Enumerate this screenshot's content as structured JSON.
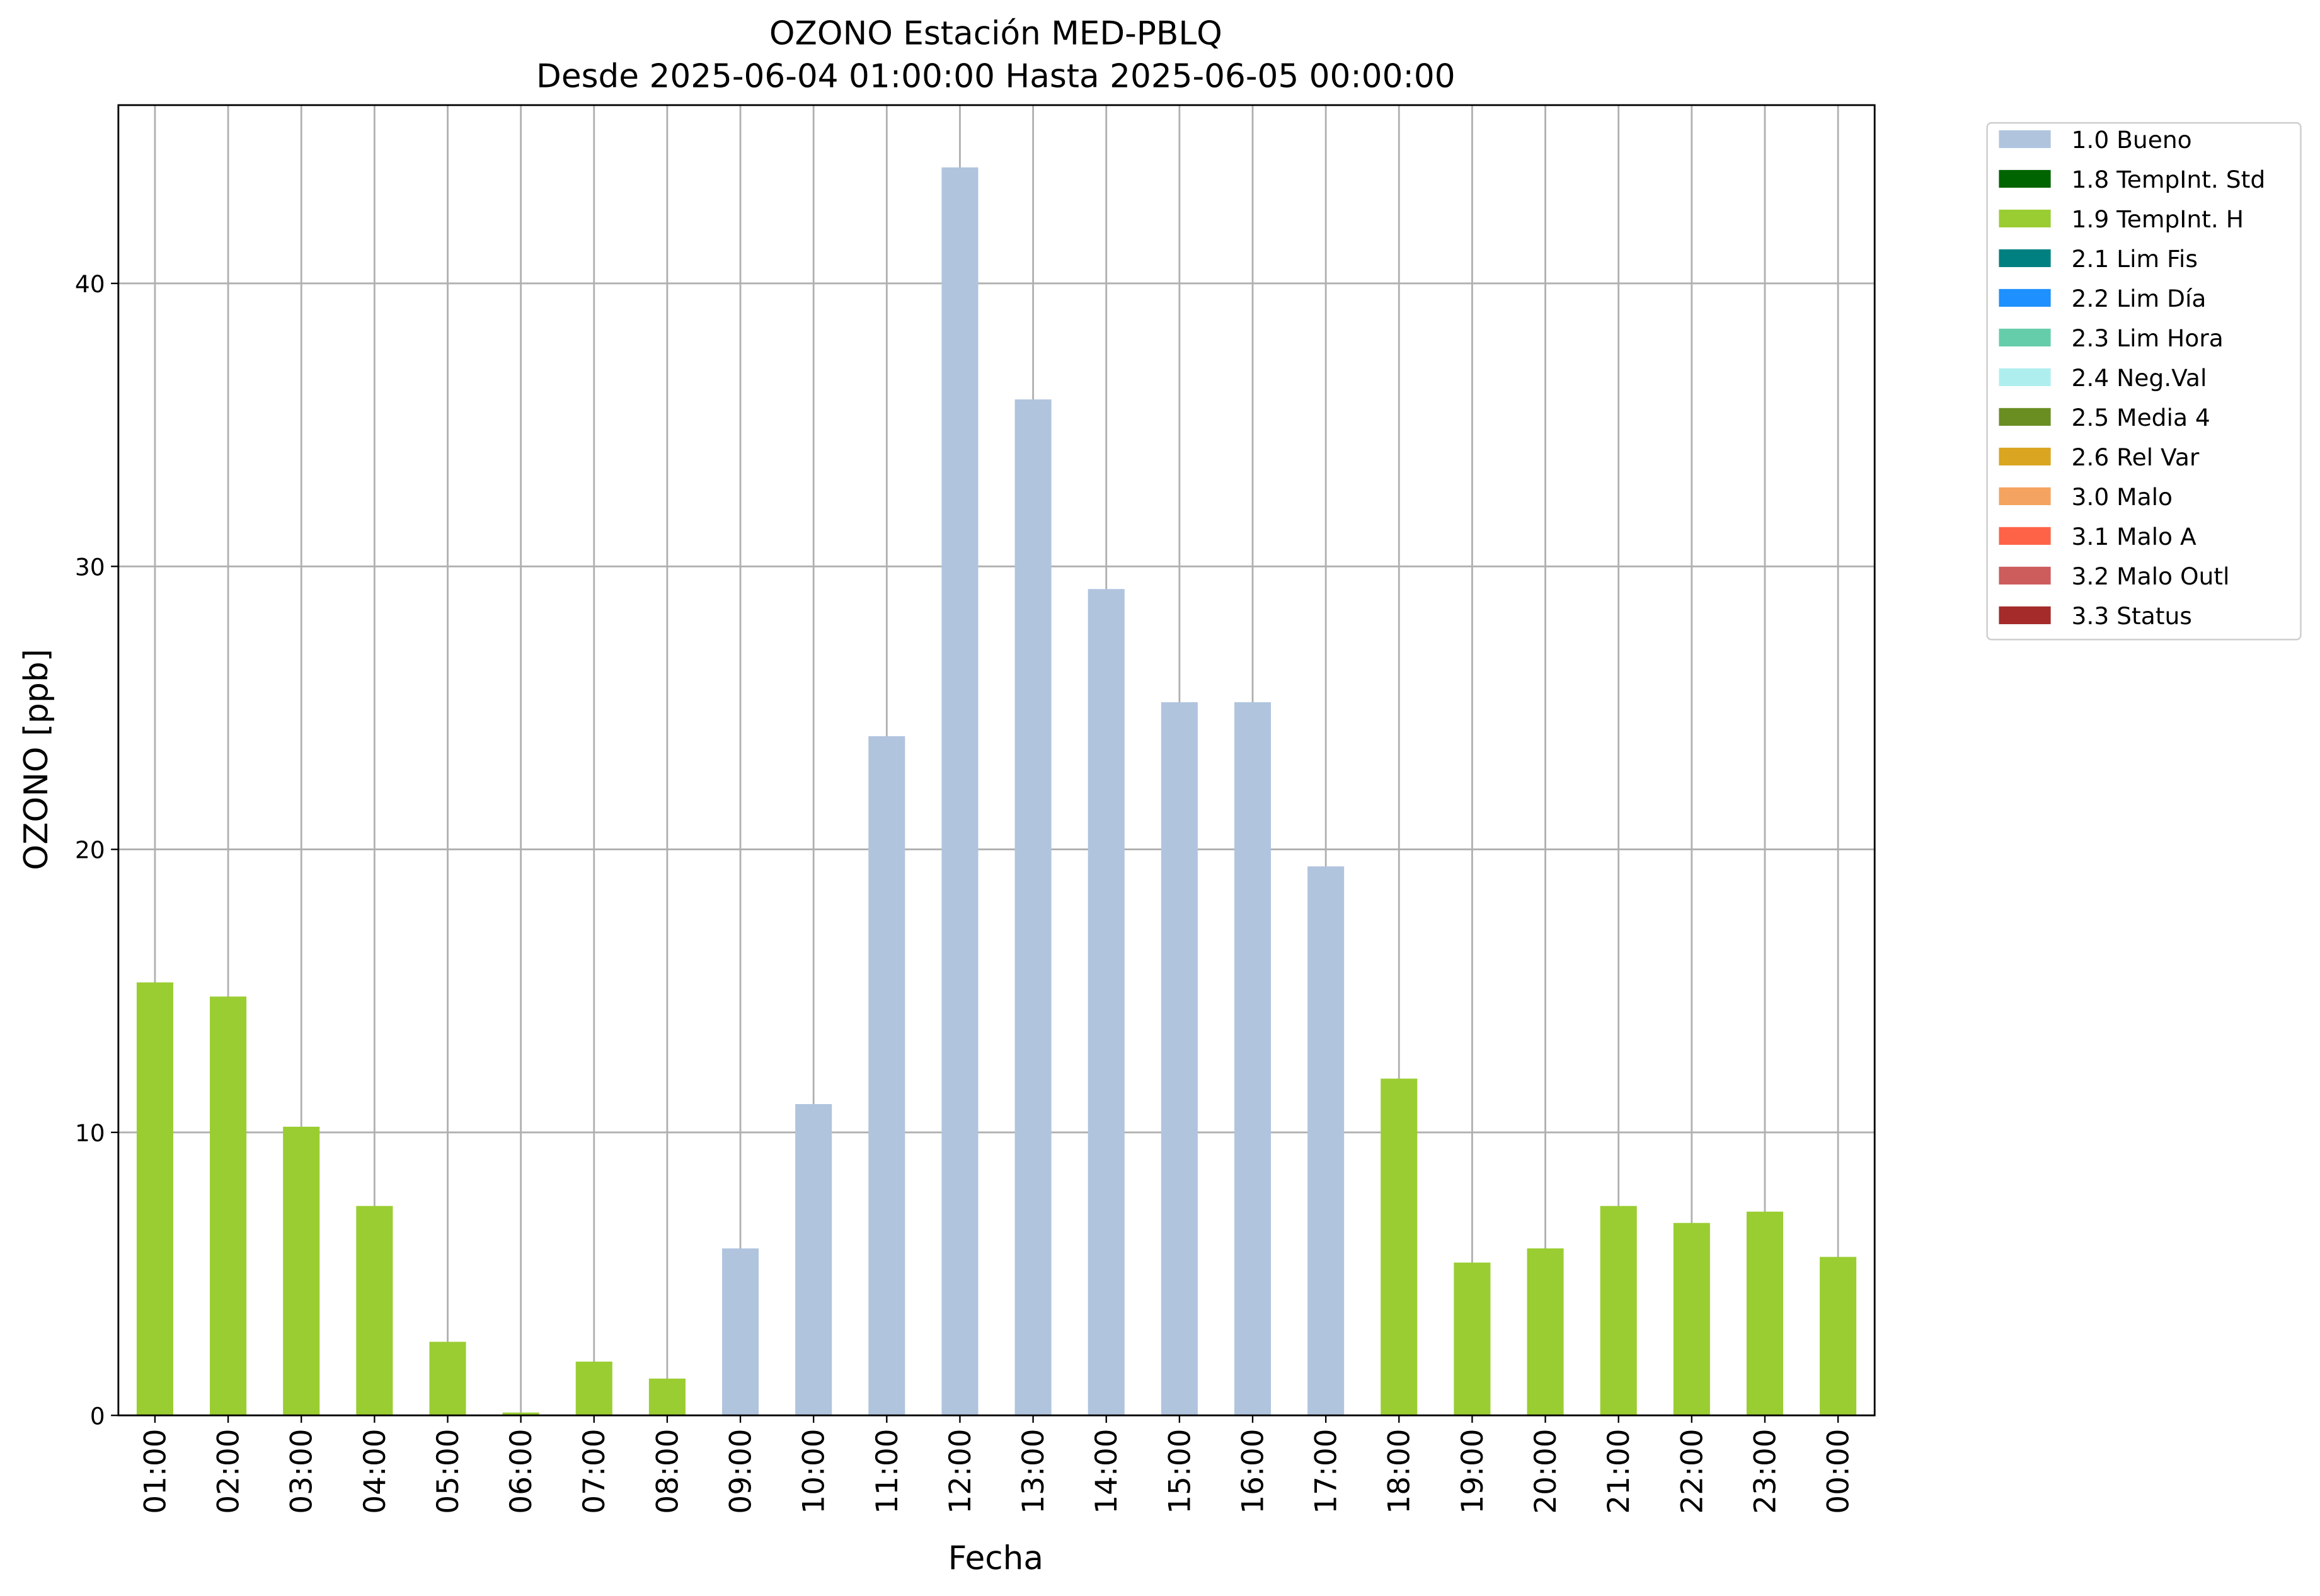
{
  "chart_data": {
    "type": "bar",
    "stacked": true,
    "title": "OZONO Estación MED-PBLQ",
    "subtitle": "Desde 2025-06-04 01:00:00 Hasta 2025-06-05 00:00:00",
    "x_label": "Fecha",
    "y_label": "OZONO [ppb]",
    "categories": [
      "01:00",
      "02:00",
      "03:00",
      "04:00",
      "05:00",
      "06:00",
      "07:00",
      "08:00",
      "09:00",
      "10:00",
      "11:00",
      "12:00",
      "13:00",
      "14:00",
      "15:00",
      "16:00",
      "17:00",
      "18:00",
      "19:00",
      "20:00",
      "21:00",
      "22:00",
      "23:00",
      "00:00"
    ],
    "series": [
      {
        "name": "1.0 Bueno",
        "color": "#b0c4de",
        "values": [
          null,
          null,
          null,
          null,
          null,
          null,
          null,
          null,
          5.9,
          11.0,
          24.0,
          44.1,
          35.9,
          29.2,
          25.2,
          25.2,
          19.4,
          null,
          null,
          null,
          null,
          null,
          null,
          null
        ]
      },
      {
        "name": "1.8 TempInt. Std",
        "color": "#006400",
        "values": [
          null,
          null,
          null,
          null,
          null,
          null,
          null,
          null,
          null,
          null,
          null,
          null,
          null,
          null,
          null,
          null,
          null,
          null,
          null,
          null,
          null,
          null,
          null,
          null
        ]
      },
      {
        "name": "1.9 TempInt. H",
        "color": "#9acd32",
        "values": [
          15.3,
          14.8,
          10.2,
          7.4,
          2.6,
          0.1,
          1.9,
          1.3,
          null,
          null,
          null,
          null,
          null,
          null,
          null,
          null,
          null,
          11.9,
          5.4,
          5.9,
          7.4,
          6.8,
          7.2,
          5.6
        ]
      },
      {
        "name": "2.1 Lim Fis",
        "color": "#008080",
        "values": [
          null,
          null,
          null,
          null,
          null,
          null,
          null,
          null,
          null,
          null,
          null,
          null,
          null,
          null,
          null,
          null,
          null,
          null,
          null,
          null,
          null,
          null,
          null,
          null
        ]
      },
      {
        "name": "2.2 Lim Día",
        "color": "#1e90ff",
        "values": [
          null,
          null,
          null,
          null,
          null,
          null,
          null,
          null,
          null,
          null,
          null,
          null,
          null,
          null,
          null,
          null,
          null,
          null,
          null,
          null,
          null,
          null,
          null,
          null
        ]
      },
      {
        "name": "2.3 Lim Hora",
        "color": "#66cdaa",
        "values": [
          null,
          null,
          null,
          null,
          null,
          null,
          null,
          null,
          null,
          null,
          null,
          null,
          null,
          null,
          null,
          null,
          null,
          null,
          null,
          null,
          null,
          null,
          null,
          null
        ]
      },
      {
        "name": "2.4 Neg.Val",
        "color": "#afeeee",
        "values": [
          null,
          null,
          null,
          null,
          null,
          null,
          null,
          null,
          null,
          null,
          null,
          null,
          null,
          null,
          null,
          null,
          null,
          null,
          null,
          null,
          null,
          null,
          null,
          null
        ]
      },
      {
        "name": "2.5 Media 4",
        "color": "#6b8e23",
        "values": [
          null,
          null,
          null,
          null,
          null,
          null,
          null,
          null,
          null,
          null,
          null,
          null,
          null,
          null,
          null,
          null,
          null,
          null,
          null,
          null,
          null,
          null,
          null,
          null
        ]
      },
      {
        "name": "2.6 Rel Var",
        "color": "#daa520",
        "values": [
          null,
          null,
          null,
          null,
          null,
          null,
          null,
          null,
          null,
          null,
          null,
          null,
          null,
          null,
          null,
          null,
          null,
          null,
          null,
          null,
          null,
          null,
          null,
          null
        ]
      },
      {
        "name": "3.0 Malo",
        "color": "#f4a460",
        "values": [
          null,
          null,
          null,
          null,
          null,
          null,
          null,
          null,
          null,
          null,
          null,
          null,
          null,
          null,
          null,
          null,
          null,
          null,
          null,
          null,
          null,
          null,
          null,
          null
        ]
      },
      {
        "name": "3.1 Malo A",
        "color": "#ff6347",
        "values": [
          null,
          null,
          null,
          null,
          null,
          null,
          null,
          null,
          null,
          null,
          null,
          null,
          null,
          null,
          null,
          null,
          null,
          null,
          null,
          null,
          null,
          null,
          null,
          null
        ]
      },
      {
        "name": "3.2 Malo Outl",
        "color": "#cd5c5c",
        "values": [
          null,
          null,
          null,
          null,
          null,
          null,
          null,
          null,
          null,
          null,
          null,
          null,
          null,
          null,
          null,
          null,
          null,
          null,
          null,
          null,
          null,
          null,
          null,
          null
        ]
      },
      {
        "name": "3.3 Status",
        "color": "#a52a2a",
        "values": [
          null,
          null,
          null,
          null,
          null,
          null,
          null,
          null,
          null,
          null,
          null,
          null,
          null,
          null,
          null,
          null,
          null,
          null,
          null,
          null,
          null,
          null,
          null,
          null
        ]
      }
    ],
    "ylim": [
      0,
      46.3
    ],
    "yticks": [
      0,
      10,
      20,
      30,
      40
    ],
    "grid": true,
    "legend": "outside-upper-right"
  }
}
